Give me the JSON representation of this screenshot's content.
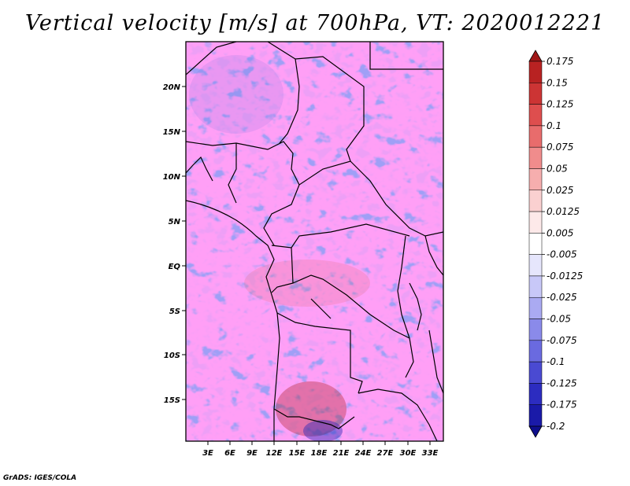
{
  "title": "Vertical velocity [m/s] at 700hPa, VT: 2020012221",
  "credit": "GrADS: IGES/COLA",
  "map": {
    "lat_labels": [
      "20N",
      "15N",
      "10N",
      "5N",
      "EQ",
      "5S",
      "10S",
      "15S"
    ],
    "lon_labels": [
      "3E",
      "6E",
      "9E",
      "12E",
      "15E",
      "18E",
      "21E",
      "24E",
      "27E",
      "30E",
      "33E"
    ]
  },
  "colorbar": {
    "levels": [
      "0.175",
      "0.15",
      "0.125",
      "0.1",
      "0.075",
      "0.05",
      "0.025",
      "0.0125",
      "0.005",
      "-0.005",
      "-0.0125",
      "-0.025",
      "-0.05",
      "-0.075",
      "-0.1",
      "-0.125",
      "-0.175",
      "-0.2"
    ],
    "colors": [
      "#a01818",
      "#b82222",
      "#cc3434",
      "#de4e4e",
      "#e86c6c",
      "#f08c8c",
      "#f6aeae",
      "#fad0d0",
      "#fde9e9",
      "#ffffff",
      "#e6e6fc",
      "#c8c8f8",
      "#aaaaf2",
      "#8a8aea",
      "#6a6ae0",
      "#4a4ad2",
      "#2c2cc0",
      "#1a1aa8",
      "#0e0e8c"
    ]
  }
}
